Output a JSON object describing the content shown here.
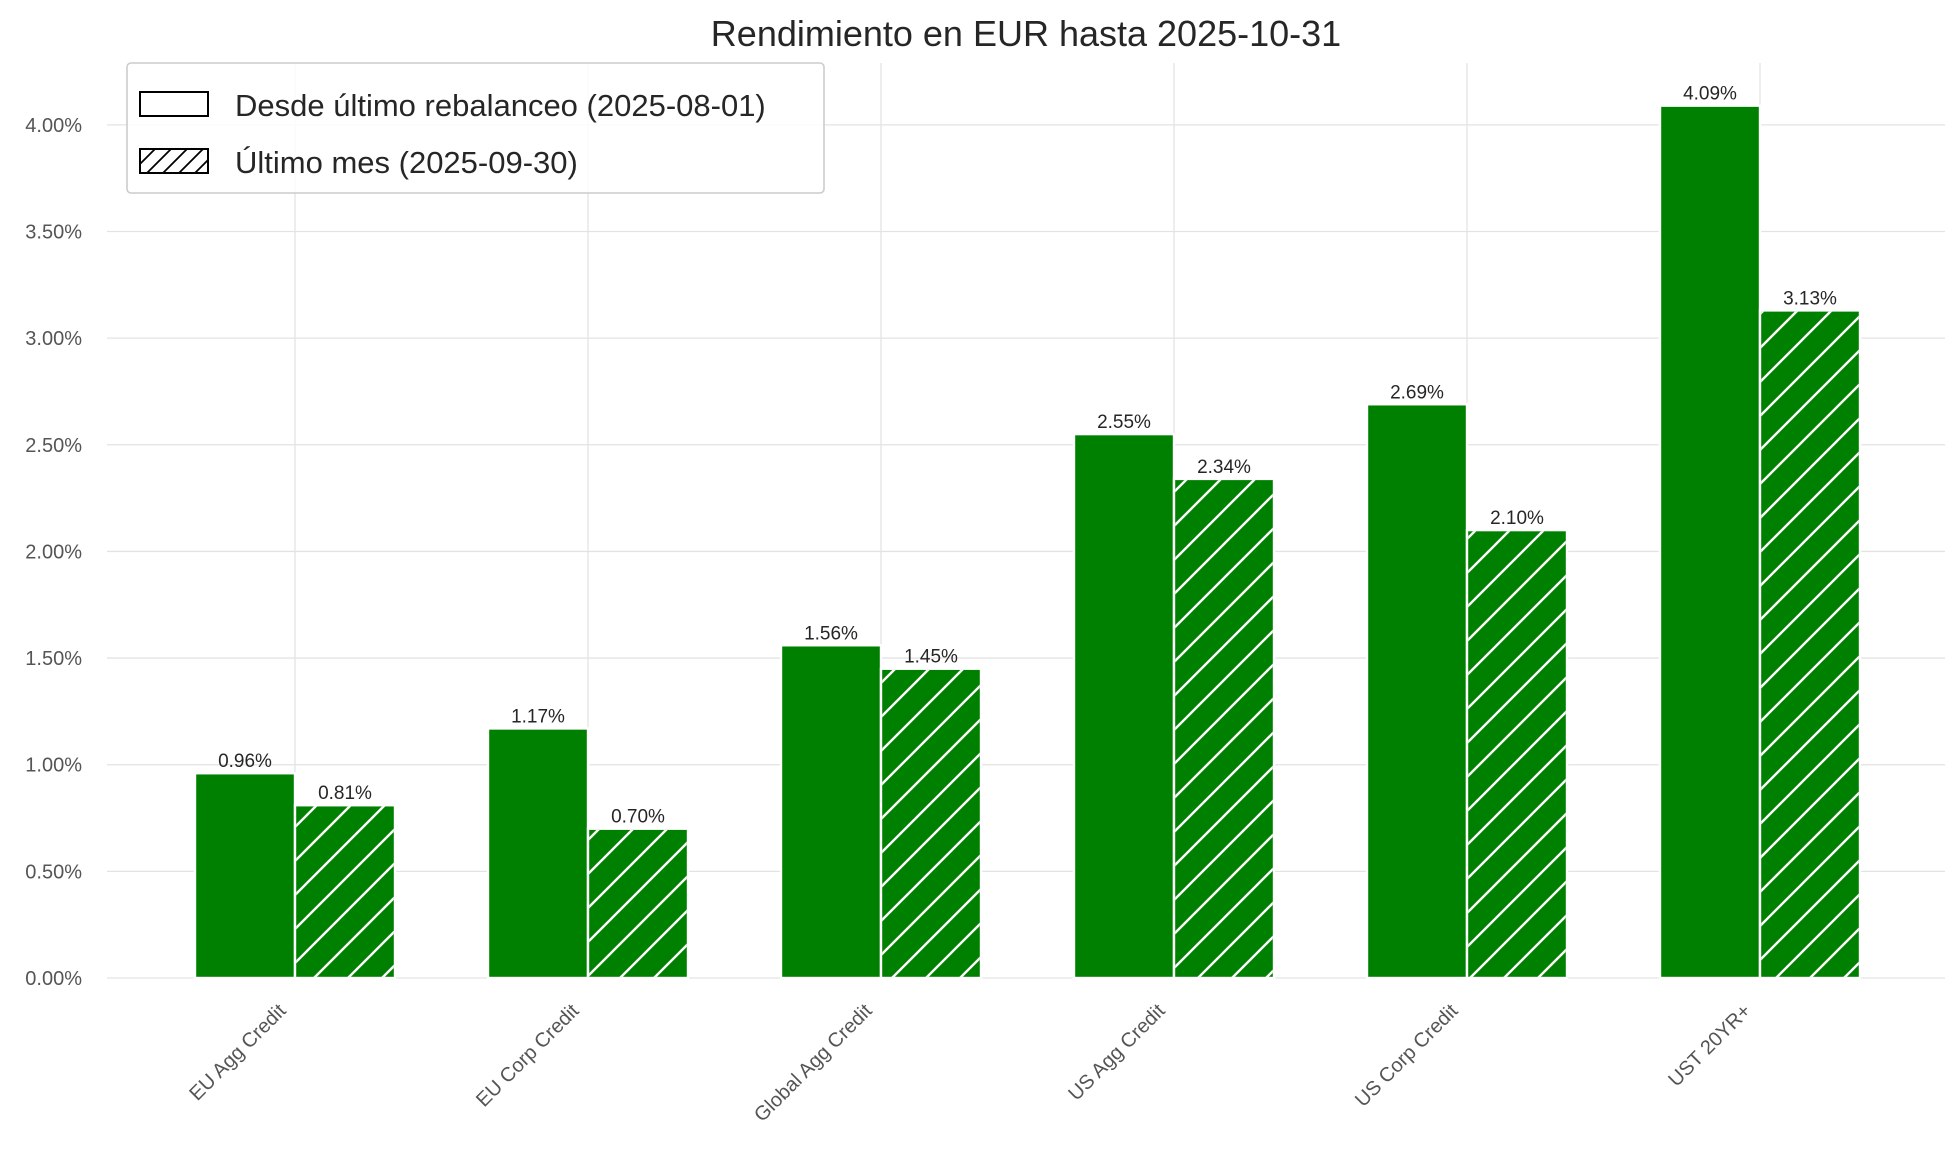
{
  "chart_data": {
    "type": "bar",
    "title": "Rendimiento en EUR hasta 2025-10-31",
    "categories": [
      "EU Agg Credit",
      "EU Corp Credit",
      "Global Agg Credit",
      "US Agg Credit",
      "US Corp Credit",
      "UST 20YR+"
    ],
    "series": [
      {
        "name": "Desde último rebalanceo (2025-08-01)",
        "values": [
          0.96,
          1.17,
          1.56,
          2.55,
          2.69,
          4.09
        ],
        "labels": [
          "0.96%",
          "1.17%",
          "1.56%",
          "2.55%",
          "2.69%",
          "4.09%"
        ],
        "hatch": false
      },
      {
        "name": "Último mes (2025-09-30)",
        "values": [
          0.81,
          0.7,
          1.45,
          2.34,
          2.1,
          3.13
        ],
        "labels": [
          "0.81%",
          "0.70%",
          "1.45%",
          "2.34%",
          "2.10%",
          "3.13%"
        ],
        "hatch": true
      }
    ],
    "yticks": [
      {
        "value": 0.0,
        "label": "0.00%"
      },
      {
        "value": 0.5,
        "label": "0.50%"
      },
      {
        "value": 1.0,
        "label": "1.00%"
      },
      {
        "value": 1.5,
        "label": "1.50%"
      },
      {
        "value": 2.0,
        "label": "2.00%"
      },
      {
        "value": 2.5,
        "label": "2.50%"
      },
      {
        "value": 3.0,
        "label": "3.00%"
      },
      {
        "value": 3.5,
        "label": "3.50%"
      },
      {
        "value": 4.0,
        "label": "4.00%"
      }
    ],
    "ylim": [
      0,
      4.29
    ],
    "xlabel": "",
    "ylabel": "",
    "grid": true,
    "legend_position": "top-left",
    "colors": {
      "bar": "#008000",
      "hatch": "#ffffff",
      "grid": "#e3e3e3"
    }
  }
}
